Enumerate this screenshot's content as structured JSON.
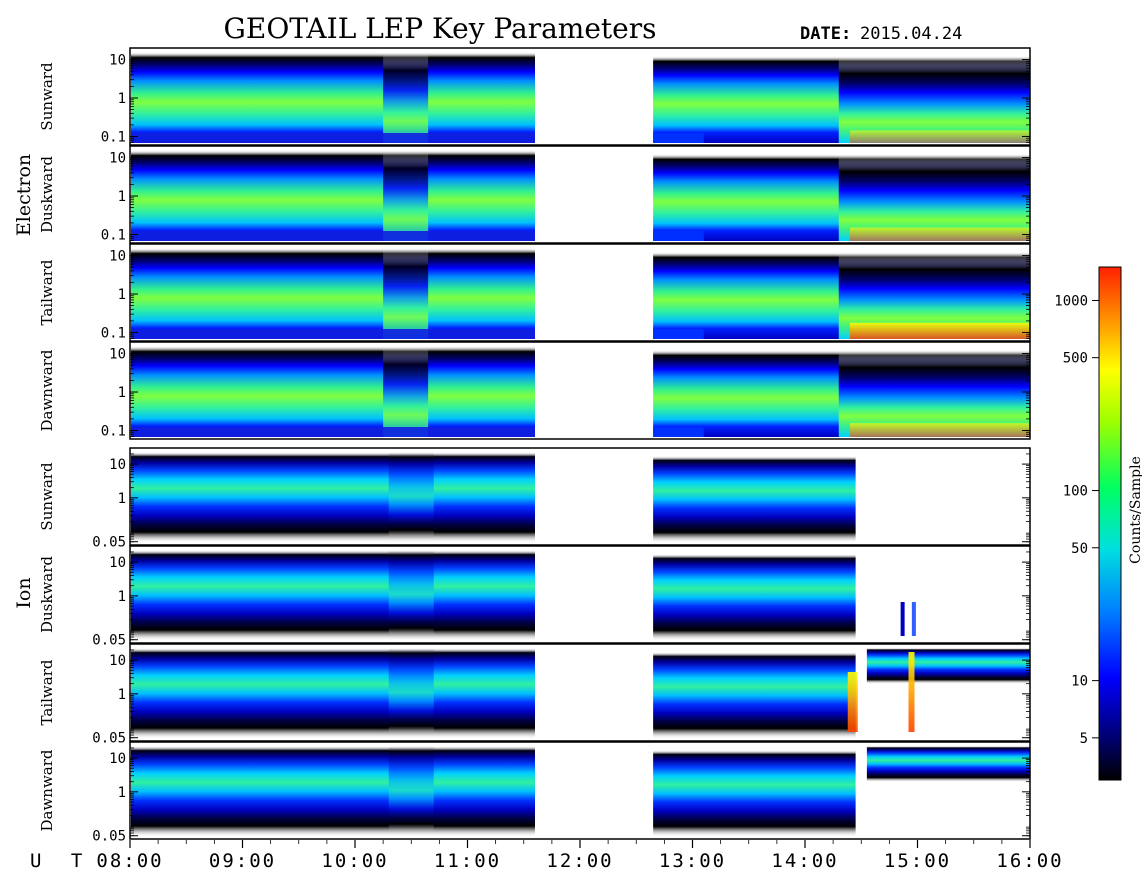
{
  "chart_data": {
    "type": "heatmap",
    "title": "GEOTAIL LEP Key Parameters",
    "date_label": "DATE:",
    "date_value": "2015.04.24",
    "time_axis": {
      "prefix": "U T",
      "ticks": [
        "08:00",
        "09:00",
        "10:00",
        "11:00",
        "12:00",
        "13:00",
        "14:00",
        "15:00",
        "16:00"
      ],
      "range_hours": [
        8,
        16
      ],
      "data_gap_hours": [
        11.6,
        12.65
      ]
    },
    "groups": [
      {
        "name": "Electron",
        "energy_ticks": [
          "10",
          "1",
          "0.1"
        ],
        "energy_range": [
          0.06,
          20
        ],
        "panels": [
          {
            "direction": "Sunward",
            "hot_level": 0.55
          },
          {
            "direction": "Duskward",
            "hot_level": 0.62
          },
          {
            "direction": "Tailward",
            "hot_level": 0.85
          },
          {
            "direction": "Dawnward",
            "hot_level": 0.65
          }
        ]
      },
      {
        "name": "Ion",
        "energy_ticks": [
          "10",
          "1",
          "0.05"
        ],
        "energy_range": [
          0.04,
          30
        ],
        "panels": [
          {
            "direction": "Sunward",
            "hot_level": 0.0
          },
          {
            "direction": "Duskward",
            "hot_level": 0.0
          },
          {
            "direction": "Tailward",
            "hot_level": 0.9
          },
          {
            "direction": "Dawnward",
            "hot_level": 0.0
          }
        ]
      }
    ],
    "colorbar": {
      "label": "Counts/Sample",
      "scale": "log",
      "range": [
        3,
        1500
      ],
      "ticks": [
        "1000",
        "500",
        "100",
        "50",
        "10",
        "5"
      ],
      "tick_values": [
        1000,
        500,
        100,
        50,
        10,
        5
      ]
    }
  }
}
